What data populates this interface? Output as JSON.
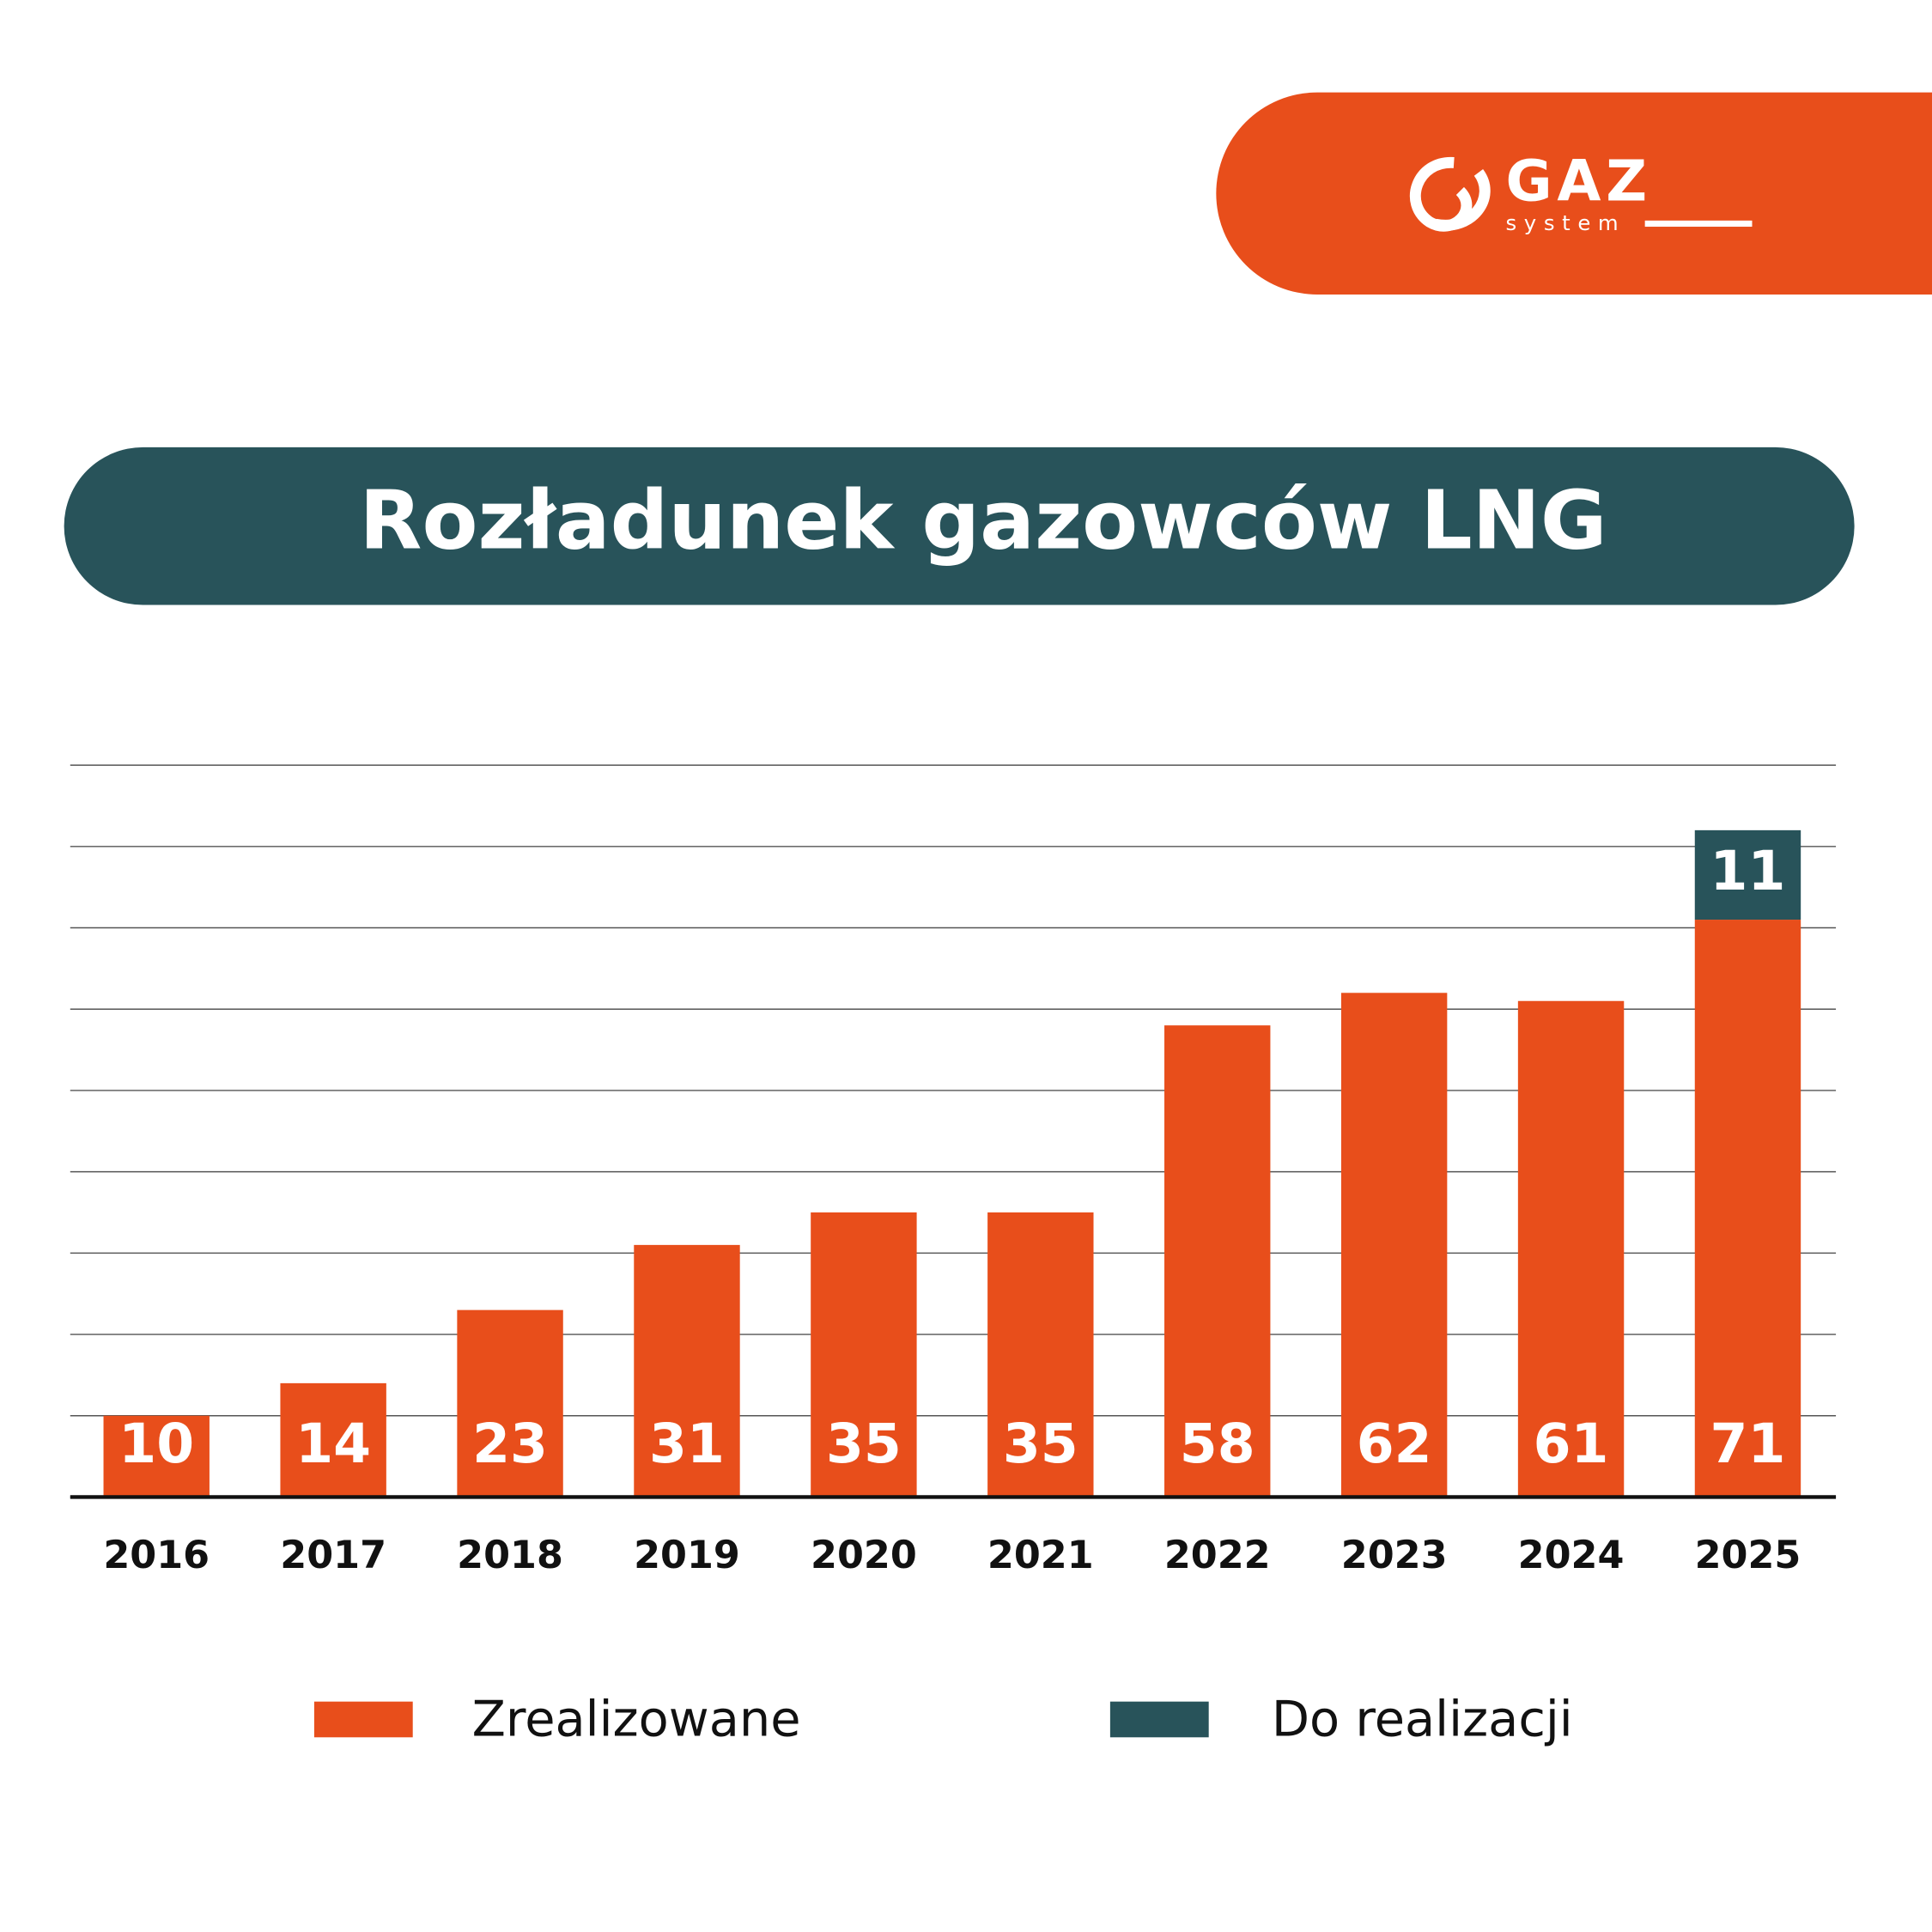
{
  "logo": {
    "name": "GAZ",
    "sub": "system"
  },
  "chart_data": {
    "type": "bar",
    "stacked": true,
    "title": "Rozładunek gazowców LNG",
    "categories": [
      "2016",
      "2017",
      "2018",
      "2019",
      "2020",
      "2021",
      "2022",
      "2023",
      "2024",
      "2025"
    ],
    "series": [
      {
        "name": "Zrealizowane",
        "color": "#e84e1b",
        "values": [
          10,
          14,
          23,
          31,
          35,
          35,
          58,
          62,
          61,
          71
        ]
      },
      {
        "name": "Do realizacji",
        "color": "#28535a",
        "values": [
          null,
          null,
          null,
          null,
          null,
          null,
          null,
          null,
          null,
          11
        ]
      }
    ],
    "ylim": [
      0,
      90
    ],
    "yticks": [
      0,
      10,
      20,
      30,
      40,
      50,
      60,
      70,
      80,
      90
    ],
    "grid": true,
    "legend": "bottom"
  }
}
